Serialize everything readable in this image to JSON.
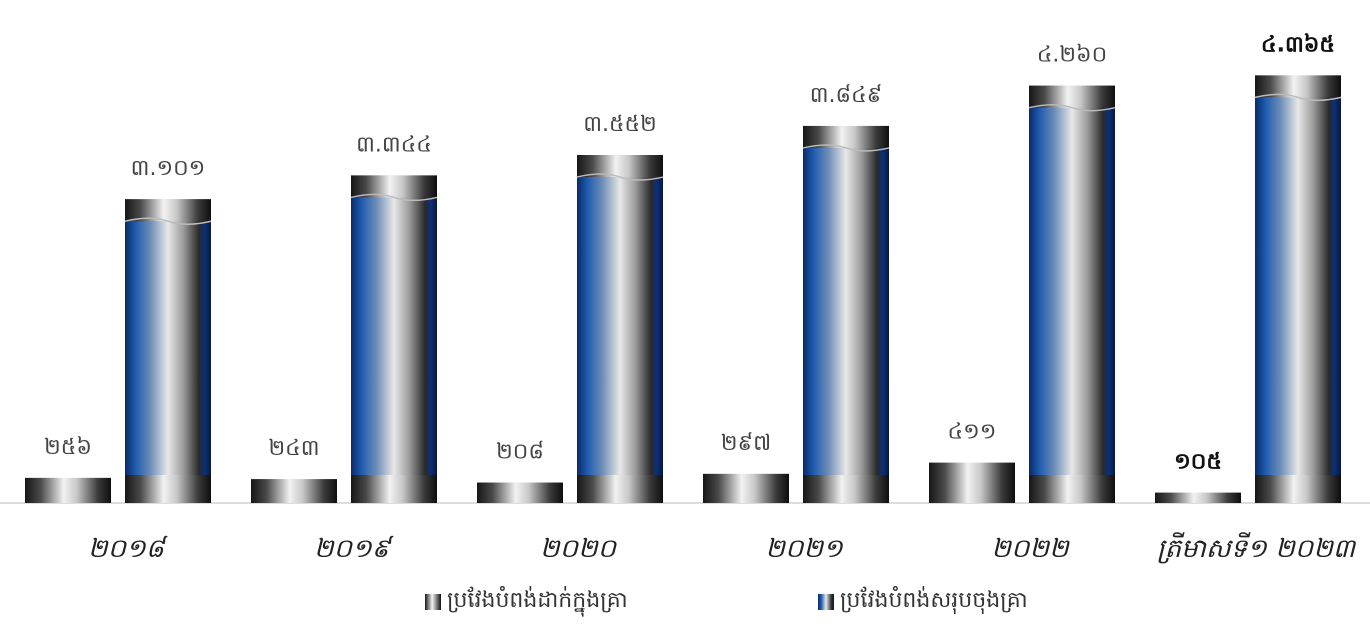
{
  "chart_data": {
    "type": "bar",
    "categories": [
      "២០១៨",
      "២០១៩",
      "២០២០",
      "២០២១",
      "២០២២",
      "ត្រីមាសទី១ ២០២៣"
    ],
    "series": [
      {
        "name": "ប្រវែងបំពង់ដាក់ក្នុងគ្រា",
        "values": [
          256,
          243,
          208,
          297,
          411,
          105
        ],
        "labels": [
          "២៥៦",
          "២៤៣",
          "២០៨",
          "២៩៧",
          "៤១១",
          "១០៥"
        ]
      },
      {
        "name": "ប្រវែងបំពង់សរុបចុងគ្រា",
        "values": [
          3101,
          3344,
          3552,
          3849,
          4260,
          4365
        ],
        "labels": [
          "៣.១០១",
          "៣.៣៤៤",
          "៣.៥៥២",
          "៣.៨៤៩",
          "៤.២៦០",
          "៤.៣៦៥"
        ]
      }
    ],
    "bold_category_index": 5,
    "colors": {
      "series1": "#3a3a3a",
      "series2": "#1a4f9c"
    },
    "grid": false,
    "legend_position": "bottom",
    "title": "",
    "xlabel": "",
    "ylabel": ""
  }
}
